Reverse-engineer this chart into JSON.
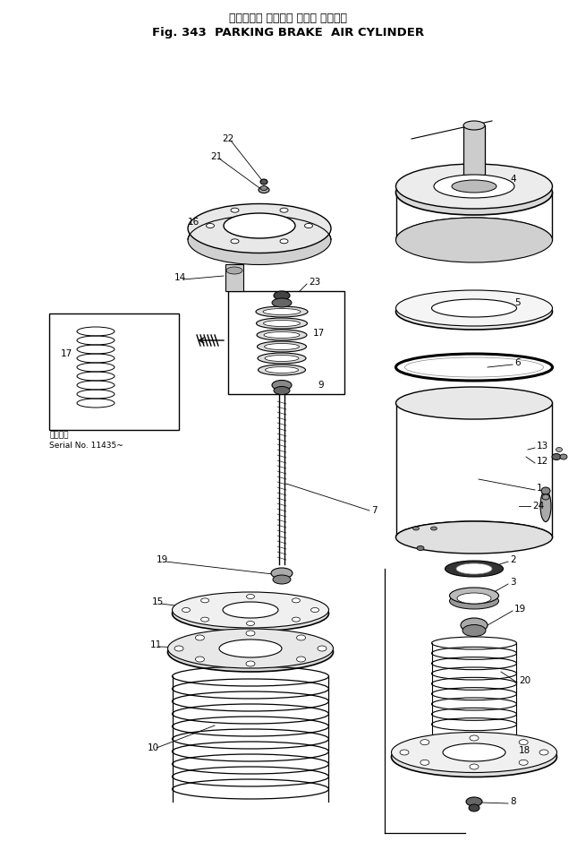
{
  "title_japanese": "パーキング ブレーキ エアー シリンダ",
  "title_english": "Fig. 343  PARKING BRAKE  AIR CYLINDER",
  "serial_text_jp": "適用号筆",
  "serial_text_en": "Serial No. 11435~",
  "bg_color": "#ffffff",
  "line_color": "#000000"
}
